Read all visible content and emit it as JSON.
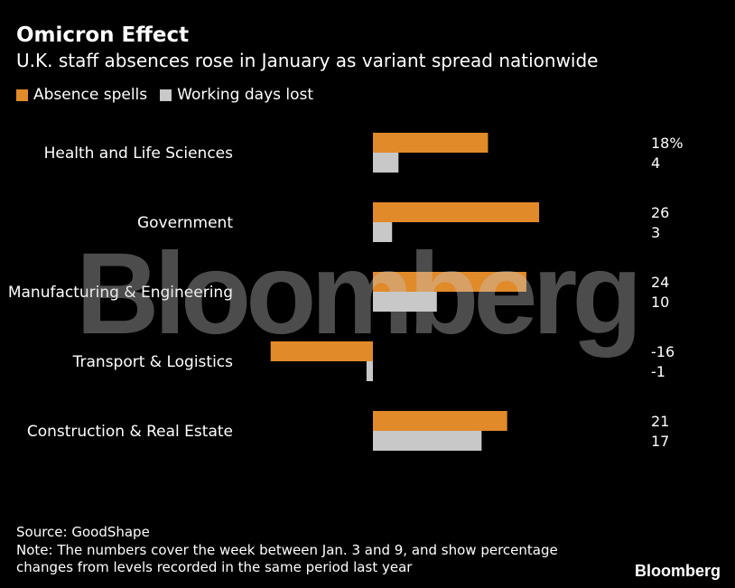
{
  "title": "Omicron Effect",
  "subtitle": "U.K. staff absences rose in January as variant spread nationwide",
  "legend": [
    {
      "label": "Absence spells",
      "color": "#e08a2a"
    },
    {
      "label": "Working days lost",
      "color": "#c8c8c8"
    }
  ],
  "chart_data": {
    "type": "bar",
    "orientation": "horizontal",
    "unit": "%",
    "categories": [
      "Health and Life Sciences",
      "Government",
      "Manufacturing & Engineering",
      "Transport & Logistics",
      "Construction & Real Estate"
    ],
    "series": [
      {
        "name": "Absence spells",
        "color": "#e08a2a",
        "values": [
          18,
          26,
          24,
          -16,
          21
        ],
        "labels": [
          "18%",
          "26",
          "24",
          "-16",
          "21"
        ]
      },
      {
        "name": "Working days lost",
        "color": "#c8c8c8",
        "values": [
          4,
          3,
          10,
          -1,
          17
        ],
        "labels": [
          "4",
          "3",
          "10",
          "-1",
          "17"
        ]
      }
    ],
    "xlim": [
      -16,
      26
    ]
  },
  "source": "Source: GoodShape",
  "note_line1": "Note: The numbers cover the week between Jan. 3 and 9, and show percentage",
  "note_line2": "changes from levels recorded in the same period last year",
  "watermark": "Bloomberg",
  "brand": "Bloomberg"
}
